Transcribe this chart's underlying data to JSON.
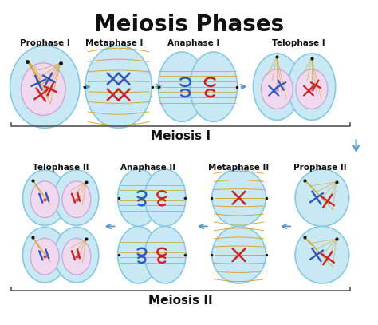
{
  "title": "Meiosis Phases",
  "title_fontsize": 20,
  "title_fontweight": "bold",
  "background_color": "#ffffff",
  "meiosis1_label": "Meiosis I",
  "meiosis2_label": "Meiosis II",
  "meiosis1_phases": [
    "Prophase I",
    "Metaphase I",
    "Anaphase I",
    "Telophase I"
  ],
  "meiosis2_phases": [
    "Telophase II",
    "Anaphase II",
    "Metaphase II",
    "Prophase II"
  ],
  "cell_color": "#c8e8f4",
  "cell_edge_color": "#88c8e0",
  "nucleus_color": "#f0d8ee",
  "nucleus_edge_color": "#c8a8d8",
  "spindle_color": "#d4a020",
  "chr_blue": "#3355bb",
  "chr_red": "#cc2222",
  "arrow_color": "#5599cc",
  "label_color": "#111111",
  "label_fontsize": 7.5,
  "bracket_color": "#555555",
  "dot_color": "#111111",
  "spindle_lw": 0.7,
  "cell_lw": 1.2
}
